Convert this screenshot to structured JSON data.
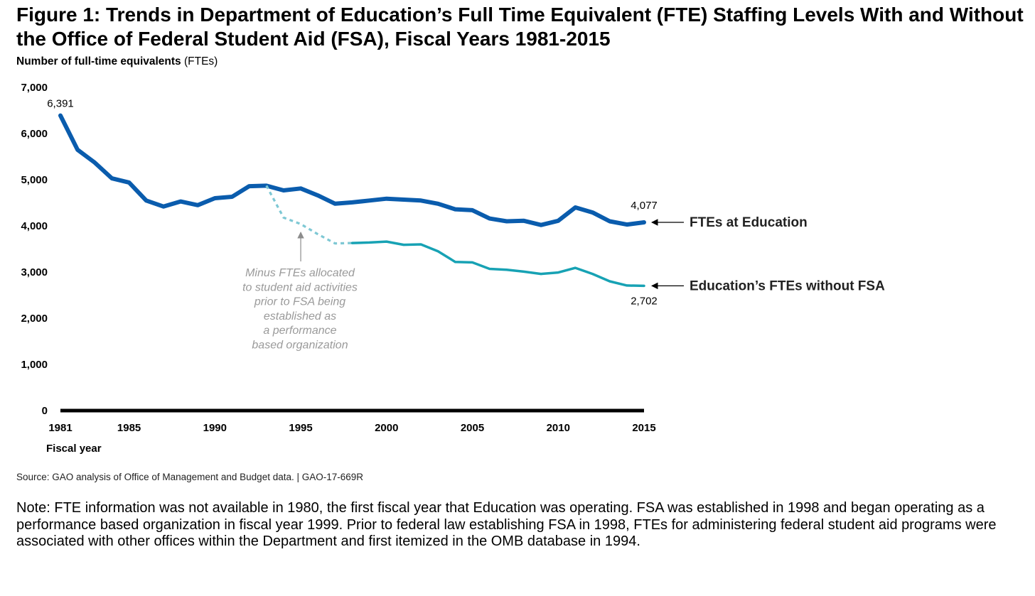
{
  "header": {
    "title": "Figure 1: Trends in Department of Education’s Full Time Equivalent (FTE) Staffing Levels With and Without the Office of Federal Student Aid (FSA), Fiscal Years 1981-2015",
    "ylabel_bold": "Number of full-time equivalents",
    "ylabel_unit": "(FTEs)"
  },
  "chart_data": {
    "type": "line",
    "title": "Figure 1: Trends in Department of Education’s Full Time Equivalent (FTE) Staffing Levels With and Without the Office of Federal Student Aid (FSA), Fiscal Years 1981-2015",
    "xlabel": "Fiscal year",
    "ylabel": "Number of full-time equivalents (FTEs)",
    "xlim": [
      1981,
      2015
    ],
    "ylim": [
      0,
      7000
    ],
    "yticks": [
      0,
      1000,
      2000,
      3000,
      4000,
      5000,
      6000,
      7000
    ],
    "ytick_labels": [
      "0",
      "1,000",
      "2,000",
      "3,000",
      "4,000",
      "5,000",
      "6,000",
      "7,000"
    ],
    "xticks": [
      1981,
      1985,
      1990,
      1995,
      2000,
      2005,
      2010,
      2015
    ],
    "xtick_labels": [
      "1981",
      "1985",
      "1990",
      "1995",
      "2000",
      "2005",
      "2010",
      "2015"
    ],
    "series": [
      {
        "name": "FTEs at Education",
        "color": "#0a5cad",
        "x": [
          1981,
          1982,
          1983,
          1984,
          1985,
          1986,
          1987,
          1988,
          1989,
          1990,
          1991,
          1992,
          1993,
          1994,
          1995,
          1996,
          1997,
          1998,
          1999,
          2000,
          2001,
          2002,
          2003,
          2004,
          2005,
          2006,
          2007,
          2008,
          2009,
          2010,
          2011,
          2012,
          2013,
          2014,
          2015
        ],
        "values": [
          6391,
          5650,
          5370,
          5030,
          4940,
          4550,
          4420,
          4530,
          4450,
          4600,
          4630,
          4860,
          4870,
          4770,
          4810,
          4660,
          4480,
          4510,
          4550,
          4590,
          4570,
          4550,
          4480,
          4360,
          4340,
          4160,
          4100,
          4110,
          4020,
          4110,
          4400,
          4290,
          4100,
          4030,
          4077
        ]
      },
      {
        "name": "Minus FTEs allocated to student aid activities prior to FSA being established as a performance based organization",
        "color": "#7ec8d4",
        "style": "dashed",
        "x": [
          1993,
          1994,
          1995,
          1996,
          1997,
          1998
        ],
        "values": [
          4870,
          4180,
          4040,
          3820,
          3620,
          3630
        ]
      },
      {
        "name": "Education’s FTEs without FSA",
        "color": "#17a2b4",
        "x": [
          1998,
          1999,
          2000,
          2001,
          2002,
          2003,
          2004,
          2005,
          2006,
          2007,
          2008,
          2009,
          2010,
          2011,
          2012,
          2013,
          2014,
          2015
        ],
        "values": [
          3630,
          3640,
          3660,
          3590,
          3600,
          3450,
          3220,
          3210,
          3070,
          3050,
          3010,
          2960,
          2990,
          3090,
          2960,
          2800,
          2710,
          2702
        ]
      }
    ],
    "data_labels": [
      {
        "text": "6,391",
        "x": 1981,
        "y": 6391
      },
      {
        "text": "4,077",
        "x": 2015,
        "y": 4077
      },
      {
        "text": "2,702",
        "x": 2015,
        "y": 2702
      }
    ],
    "legend_labels": [
      {
        "text": "FTEs at Education",
        "series": "FTEs at Education"
      },
      {
        "text": "Education’s FTEs without FSA",
        "series": "Education’s FTEs without FSA"
      }
    ],
    "annotation": {
      "lines": [
        "Minus FTEs allocated",
        "to student aid activities",
        "prior to FSA being",
        "established as",
        "a performance",
        "based organization"
      ],
      "arrow_to": {
        "x": 1995,
        "y": 3800
      }
    },
    "colors": {
      "axis": "#000000",
      "annotation_text": "#9a9a9a",
      "annotation_arrow": "#8c8c8c"
    }
  },
  "footer": {
    "source": "Source: GAO analysis of Office of Management and Budget data.  |  GAO-17-669R",
    "note": "Note: FTE information was not available in 1980, the first fiscal year that Education was operating. FSA was established in 1998 and began operating as a performance based organization in fiscal year 1999. Prior to federal law establishing FSA in 1998, FTEs for administering federal student aid programs were associated with other offices within the Department and first itemized in the OMB database in 1994."
  }
}
